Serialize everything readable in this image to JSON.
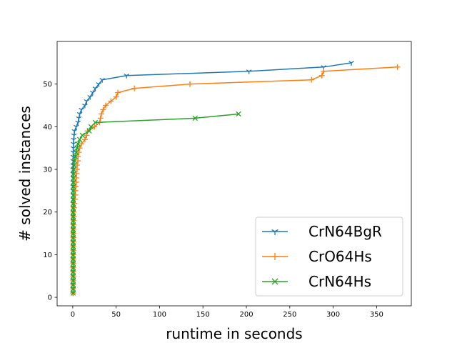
{
  "chart_data": {
    "type": "line",
    "title": "",
    "xlabel": "runtime in seconds",
    "ylabel": "# solved instances",
    "xlim": [
      -18,
      390
    ],
    "ylim": [
      -2,
      60
    ],
    "xticks": [
      0,
      50,
      100,
      150,
      200,
      250,
      300,
      350
    ],
    "yticks": [
      0,
      10,
      20,
      30,
      40,
      50
    ],
    "grid": false,
    "legend_position": "bottom-right",
    "series": [
      {
        "name": "CrN64BgR",
        "color": "#1f77b4",
        "marker": "tri-down",
        "x": [
          0.3,
          0.3,
          0.3,
          0.3,
          0.3,
          0.3,
          0.3,
          0.3,
          0.3,
          0.4,
          0.4,
          0.4,
          0.4,
          0.4,
          0.4,
          0.4,
          0.4,
          0.4,
          0.4,
          0.4,
          0.4,
          0.4,
          0.4,
          0.4,
          0.4,
          0.4,
          0.4,
          0.4,
          0.4,
          0.4,
          0.4,
          0.4,
          0.5,
          0.5,
          0.6,
          0.8,
          1,
          1.5,
          2,
          4,
          6,
          7,
          8,
          10,
          14,
          16,
          20,
          23,
          26,
          30,
          34,
          62,
          203,
          289,
          321
        ],
        "y": [
          1,
          2,
          3,
          4,
          5,
          6,
          7,
          8,
          9,
          10,
          11,
          12,
          13,
          14,
          15,
          16,
          17,
          18,
          19,
          20,
          21,
          22,
          23,
          24,
          25,
          26,
          27,
          28,
          29,
          30,
          31,
          32,
          33,
          34,
          35,
          36,
          37,
          38,
          39,
          40,
          41,
          42,
          43,
          44,
          45,
          46,
          47,
          48,
          49,
          50,
          51,
          52,
          53,
          54,
          55
        ]
      },
      {
        "name": "CrO64Hs",
        "color": "#ff7f0e",
        "marker": "plus",
        "x": [
          0.5,
          0.5,
          0.5,
          0.5,
          0.5,
          0.5,
          0.5,
          0.6,
          0.6,
          0.6,
          0.6,
          0.6,
          0.7,
          0.7,
          0.7,
          0.8,
          0.8,
          0.9,
          1,
          1,
          1.5,
          2,
          2.5,
          3,
          3,
          3.5,
          4,
          4,
          4.5,
          5,
          5,
          6,
          6,
          7,
          8,
          10,
          14,
          16,
          17,
          25,
          31,
          32,
          33,
          35,
          38,
          44,
          50,
          52,
          71,
          135,
          275,
          287,
          289,
          374
        ],
        "y": [
          1,
          2,
          3,
          4,
          5,
          6,
          7,
          8,
          9,
          10,
          11,
          12,
          13,
          14,
          15,
          16,
          17,
          18,
          19,
          20,
          21,
          22,
          23,
          24,
          25,
          26,
          27,
          28,
          29,
          30,
          31,
          32,
          33,
          34,
          35,
          36,
          37,
          38,
          39,
          40,
          41,
          42,
          43,
          44,
          45,
          46,
          47,
          48,
          49,
          50,
          51,
          52,
          53,
          54
        ]
      },
      {
        "name": "CrN64Hs",
        "color": "#2ca02c",
        "marker": "x",
        "x": [
          0.5,
          0.5,
          0.5,
          0.5,
          0.5,
          0.5,
          0.5,
          0.5,
          0.5,
          0.5,
          0.5,
          0.5,
          0.5,
          0.5,
          0.5,
          0.5,
          0.5,
          0.5,
          0.5,
          0.5,
          0.5,
          0.6,
          0.6,
          0.6,
          0.6,
          0.6,
          0.7,
          0.8,
          0.9,
          1,
          1.5,
          2,
          3,
          4,
          5,
          6,
          8,
          11,
          19,
          21,
          26,
          141,
          191
        ],
        "y": [
          1,
          2,
          3,
          4,
          5,
          6,
          7,
          8,
          9,
          10,
          11,
          12,
          13,
          14,
          15,
          16,
          17,
          18,
          19,
          20,
          21,
          22,
          23,
          24,
          25,
          26,
          27,
          28,
          29,
          30,
          31,
          32,
          33,
          34,
          35,
          36,
          37,
          38,
          39,
          40,
          41,
          42,
          43
        ]
      }
    ]
  }
}
